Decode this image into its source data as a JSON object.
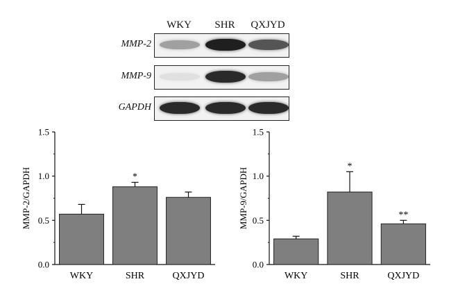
{
  "blot": {
    "lanes": [
      "WKY",
      "SHR",
      "QXJYD"
    ],
    "rows": [
      {
        "name": "MMP-2",
        "intensity": [
          0.35,
          0.95,
          0.7
        ]
      },
      {
        "name": "MMP-9",
        "intensity": [
          0.05,
          0.9,
          0.35
        ]
      },
      {
        "name": "GAPDH",
        "intensity": [
          0.9,
          0.9,
          0.9
        ]
      }
    ]
  },
  "colors": {
    "bar_fill": "#7f7f7f",
    "bar_edge": "#222222",
    "axis": "#111111"
  },
  "chart_data": [
    {
      "type": "bar",
      "categories": [
        "WKY",
        "SHR",
        "QXJYD"
      ],
      "values": [
        0.57,
        0.88,
        0.76
      ],
      "errors": [
        0.11,
        0.05,
        0.06
      ],
      "annotations": [
        "",
        "*",
        ""
      ],
      "ylabel": "MMP-2/GAPDH",
      "ylim": [
        0,
        1.5
      ],
      "yticks": [
        "0.0",
        "0.5",
        "1.0",
        "1.5"
      ],
      "grid": false
    },
    {
      "type": "bar",
      "categories": [
        "WKY",
        "SHR",
        "QXJYD"
      ],
      "values": [
        0.29,
        0.82,
        0.46
      ],
      "errors": [
        0.03,
        0.23,
        0.04
      ],
      "annotations": [
        "",
        "*",
        "**"
      ],
      "ylabel": "MMP-9/GAPDH",
      "ylim": [
        0,
        1.5
      ],
      "yticks": [
        "0.0",
        "0.5",
        "1.0",
        "1.5"
      ],
      "grid": false
    }
  ]
}
